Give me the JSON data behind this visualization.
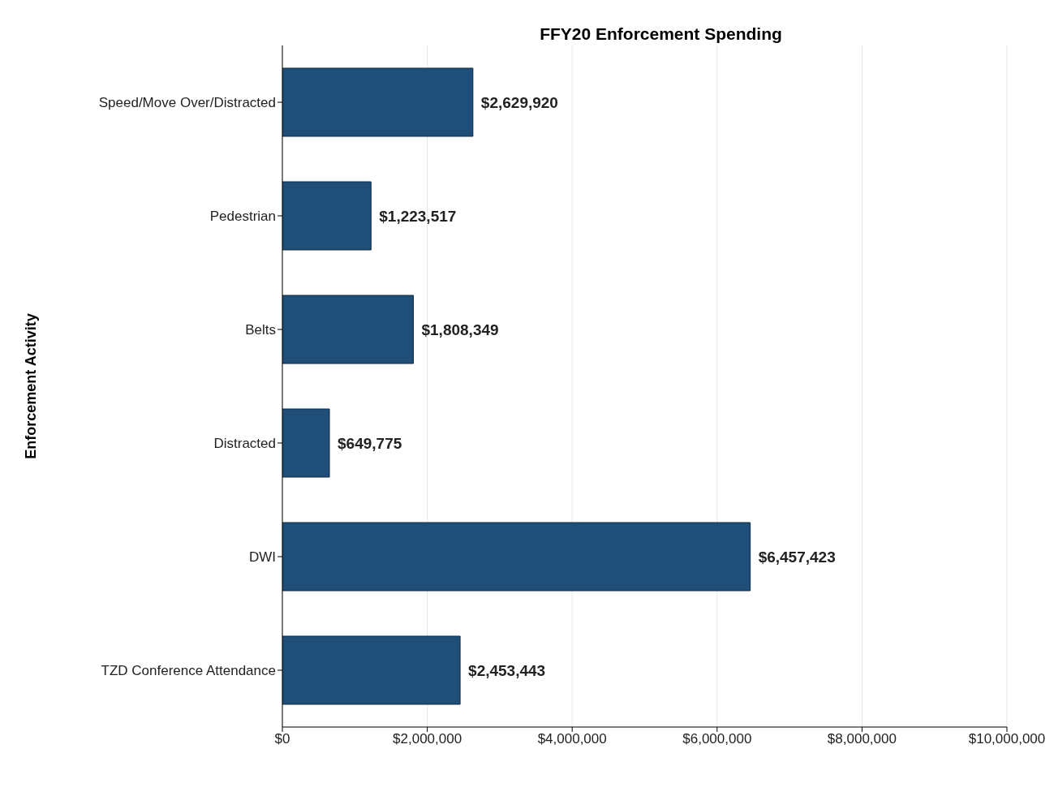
{
  "chart_data": {
    "type": "bar",
    "orientation": "horizontal",
    "title": "FFY20 Enforcement Spending",
    "ylabel": "Enforcement Activity",
    "categories": [
      "Speed/Move Over/Distracted",
      "Pedestrian",
      "Belts",
      "Distracted",
      "DWI",
      "TZD Conference Attendance"
    ],
    "values": [
      2629920,
      1223517,
      1808349,
      649775,
      6457423,
      2453443
    ],
    "value_labels": [
      "$2,629,920",
      "$1,223,517",
      "$1,808,349",
      "$649,775",
      "$6,457,423",
      "$2,453,443"
    ],
    "color": "#1f4e79",
    "xlim": [
      0,
      10000000
    ],
    "xticks": [
      {
        "value": 0,
        "label": "$0"
      },
      {
        "value": 2000000,
        "label": "$2,000,000"
      },
      {
        "value": 4000000,
        "label": "$4,000,000"
      },
      {
        "value": 6000000,
        "label": "$6,000,000"
      },
      {
        "value": 8000000,
        "label": "$8,000,000"
      },
      {
        "value": 10000000,
        "label": "$10,000,000"
      }
    ],
    "grid": "x",
    "legend": false
  }
}
